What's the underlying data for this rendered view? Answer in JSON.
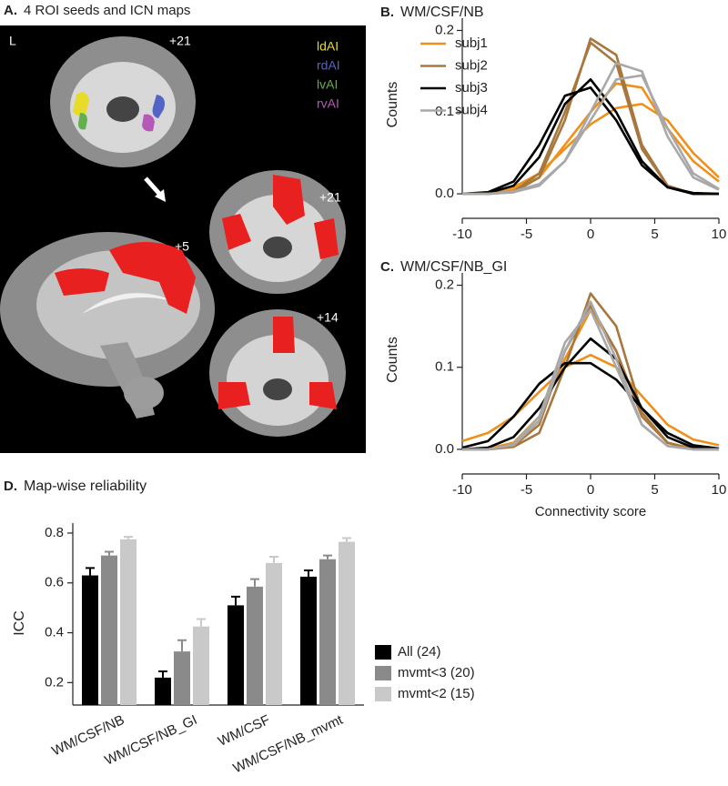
{
  "panel_a": {
    "label": "A.",
    "title": "4 ROI seeds and ICN maps",
    "side": "L",
    "slices": [
      "+21",
      "+21",
      "+5",
      "+14"
    ],
    "seeds": [
      {
        "name": "ldAI",
        "color": "#e8dc2a"
      },
      {
        "name": "rdAI",
        "color": "#5364c4"
      },
      {
        "name": "lvAI",
        "color": "#62b04e"
      },
      {
        "name": "rvAI",
        "color": "#b658b8"
      }
    ]
  },
  "chart_data": [
    {
      "type": "line",
      "label": "B.",
      "title": "WM/CSF/NB",
      "y_label": "Counts",
      "legend": true,
      "x": [
        -10,
        -8,
        -6,
        -4,
        -2,
        0,
        2,
        4,
        6,
        8,
        10
      ],
      "xlim": [
        -10,
        10
      ],
      "xticks": [
        -10,
        -5,
        0,
        5,
        10
      ],
      "ylim": [
        -0.03,
        0.215
      ],
      "yticks": [
        {
          "value": 0,
          "label": "0.0"
        },
        0.1,
        0.2
      ],
      "series": [
        {
          "name": "subj1",
          "color": "#f0901a",
          "curves": [
            [
              0,
              0,
              0.005,
              0.02,
              0.06,
              0.1,
              0.135,
              0.13,
              0.08,
              0.04,
              0.015
            ],
            [
              0,
              0.002,
              0.008,
              0.025,
              0.055,
              0.085,
              0.105,
              0.11,
              0.09,
              0.05,
              0.02
            ]
          ]
        },
        {
          "name": "subj2",
          "color": "#a8773e",
          "curves": [
            [
              0,
              0,
              0.002,
              0.02,
              0.09,
              0.19,
              0.17,
              0.06,
              0.01,
              0,
              0
            ],
            [
              0,
              0,
              0.003,
              0.025,
              0.1,
              0.185,
              0.16,
              0.055,
              0.01,
              0,
              0
            ]
          ]
        },
        {
          "name": "subj3",
          "color": "#000000",
          "curves": [
            [
              0,
              0.001,
              0.01,
              0.045,
              0.11,
              0.14,
              0.1,
              0.04,
              0.008,
              0.001,
              0
            ],
            [
              0,
              0.002,
              0.015,
              0.06,
              0.12,
              0.13,
              0.09,
              0.035,
              0.008,
              0,
              0
            ]
          ]
        },
        {
          "name": "subj4",
          "color": "#a8a8a8",
          "curves": [
            [
              0,
              0,
              0.002,
              0.01,
              0.04,
              0.1,
              0.16,
              0.15,
              0.07,
              0.02,
              0.005
            ],
            [
              0,
              0,
              0.003,
              0.012,
              0.04,
              0.09,
              0.14,
              0.145,
              0.08,
              0.025,
              0.006
            ]
          ]
        }
      ]
    },
    {
      "type": "line",
      "label": "C.",
      "title": "WM/CSF/NB_GI",
      "y_label": "Counts",
      "x_label": "Connectivity score",
      "legend": false,
      "x": [
        -10,
        -8,
        -6,
        -4,
        -2,
        0,
        2,
        4,
        6,
        8,
        10
      ],
      "xlim": [
        -10,
        10
      ],
      "xticks": [
        -10,
        -5,
        0,
        5,
        10
      ],
      "ylim": [
        -0.03,
        0.215
      ],
      "yticks": [
        {
          "value": 0,
          "label": "0.0"
        },
        0.1,
        0.2
      ],
      "series": [
        {
          "name": "subj1",
          "color": "#f0901a",
          "curves": [
            [
              0.01,
              0.02,
              0.04,
              0.07,
              0.1,
              0.115,
              0.1,
              0.065,
              0.03,
              0.012,
              0.005
            ],
            [
              0,
              0.001,
              0.008,
              0.04,
              0.11,
              0.17,
              0.12,
              0.04,
              0.008,
              0.001,
              0
            ]
          ]
        },
        {
          "name": "subj2",
          "color": "#a8773e",
          "curves": [
            [
              0,
              0,
              0.003,
              0.02,
              0.1,
              0.19,
              0.15,
              0.045,
              0.008,
              0,
              0
            ],
            [
              0,
              0,
              0.004,
              0.03,
              0.12,
              0.175,
              0.12,
              0.04,
              0.008,
              0,
              0
            ]
          ]
        },
        {
          "name": "subj3",
          "color": "#000000",
          "curves": [
            [
              0.002,
              0.01,
              0.04,
              0.08,
              0.105,
              0.105,
              0.085,
              0.05,
              0.02,
              0.005,
              0.001
            ],
            [
              0,
              0.002,
              0.015,
              0.05,
              0.1,
              0.135,
              0.11,
              0.05,
              0.015,
              0.002,
              0
            ]
          ]
        },
        {
          "name": "subj4",
          "color": "#a8a8a8",
          "curves": [
            [
              0,
              0,
              0.005,
              0.035,
              0.12,
              0.18,
              0.11,
              0.03,
              0.004,
              0,
              0
            ],
            [
              0,
              0,
              0.006,
              0.04,
              0.13,
              0.17,
              0.1,
              0.03,
              0.004,
              0,
              0
            ]
          ]
        }
      ]
    },
    {
      "type": "bar",
      "label": "D.",
      "title": "Map-wise reliability",
      "y_label": "ICC",
      "legend": true,
      "categories": [
        "WM/CSF/NB",
        "WM/CSF/NB_GI",
        "WM/CSF",
        "WM/CSF/NB_mvmt"
      ],
      "ylim": [
        0.11,
        0.84
      ],
      "yticks": [
        0.2,
        0.4,
        0.6,
        0.8
      ],
      "series": [
        {
          "name": "All (24)",
          "color": "#000000",
          "values": [
            0.63,
            0.22,
            0.51,
            0.625
          ],
          "errors": [
            0.03,
            0.025,
            0.035,
            0.025
          ]
        },
        {
          "name": "mvmt<3 (20)",
          "color": "#8a8a8a",
          "values": [
            0.71,
            0.325,
            0.585,
            0.695
          ],
          "errors": [
            0.015,
            0.045,
            0.03,
            0.015
          ]
        },
        {
          "name": "mvmt<2 (15)",
          "color": "#c9c9c9",
          "values": [
            0.775,
            0.425,
            0.68,
            0.765
          ],
          "errors": [
            0.01,
            0.03,
            0.025,
            0.015
          ]
        }
      ]
    }
  ]
}
